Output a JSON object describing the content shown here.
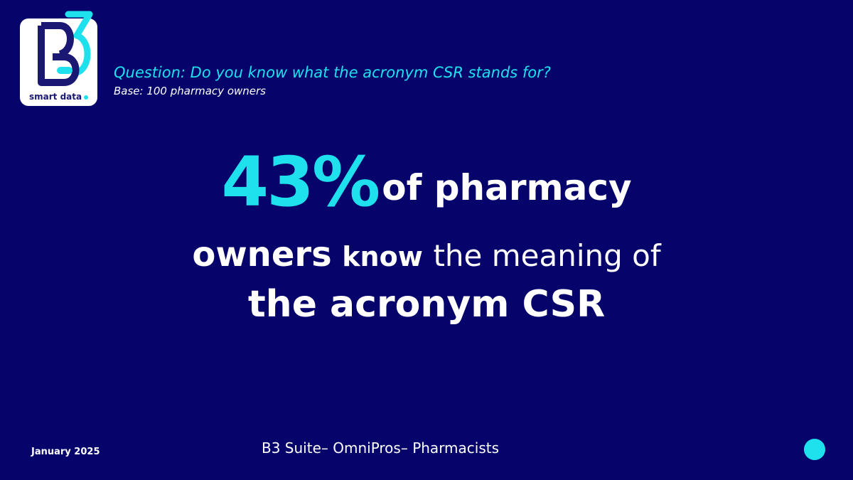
{
  "logo": {
    "text": "B3",
    "tagline": "smart data"
  },
  "header": {
    "question": "Question: Do you know what the acronym CSR stands for?",
    "base": "Base: 100 pharmacy owners"
  },
  "headline": {
    "percent": "43%",
    "line1_rest": "of pharmacy",
    "line2_a": "owners",
    "line2_b": "know",
    "line2_c": "the meaning of",
    "line3": "the acronym CSR"
  },
  "footer": {
    "date": "January 2025",
    "suite": "B3 Suite– OmniPros– Pharmacists"
  },
  "colors": {
    "background": "#06046b",
    "accent": "#1fe1ee",
    "text": "#ffffff"
  }
}
